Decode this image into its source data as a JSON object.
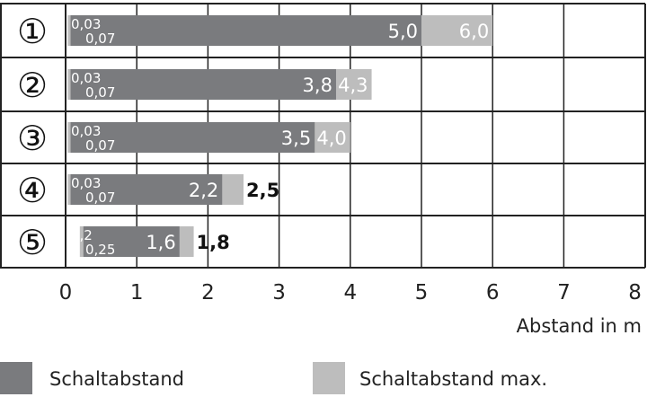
{
  "chart_data": {
    "type": "bar",
    "orientation": "horizontal",
    "stacked_ranges": true,
    "categories": [
      "①",
      "②",
      "③",
      "④",
      "⑤"
    ],
    "series": [
      {
        "name": "Schaltabstand",
        "color": "#7a7b7e",
        "ranges": [
          [
            0.07,
            5.0
          ],
          [
            0.07,
            3.8
          ],
          [
            0.07,
            3.5
          ],
          [
            0.07,
            2.2
          ],
          [
            0.25,
            1.6
          ]
        ]
      },
      {
        "name": "Schaltabstand max.",
        "color": "#bdbdbd",
        "ranges": [
          [
            0.03,
            6.0
          ],
          [
            0.03,
            4.3
          ],
          [
            0.03,
            4.0
          ],
          [
            0.03,
            2.5
          ],
          [
            0.2,
            1.8
          ]
        ]
      }
    ],
    "min_labels": [
      [
        "0,03",
        "0,07"
      ],
      [
        "0,03",
        "0,07"
      ],
      [
        "0,03",
        "0,07"
      ],
      [
        "0,03",
        "0,07"
      ],
      [
        "0,2",
        "0,25"
      ]
    ],
    "value_labels": [
      "5,0",
      "3,8",
      "3,5",
      "2,2",
      "1,6"
    ],
    "max_labels": [
      "6,0",
      "4,3",
      "4,0",
      "2,5",
      "1,8"
    ],
    "xlabel": "Abstand in m",
    "xlim": [
      0,
      8
    ],
    "xticks": [
      "0",
      "1",
      "2",
      "3",
      "4",
      "5",
      "6",
      "7",
      "8"
    ],
    "grid": true,
    "legend": "bottom"
  }
}
